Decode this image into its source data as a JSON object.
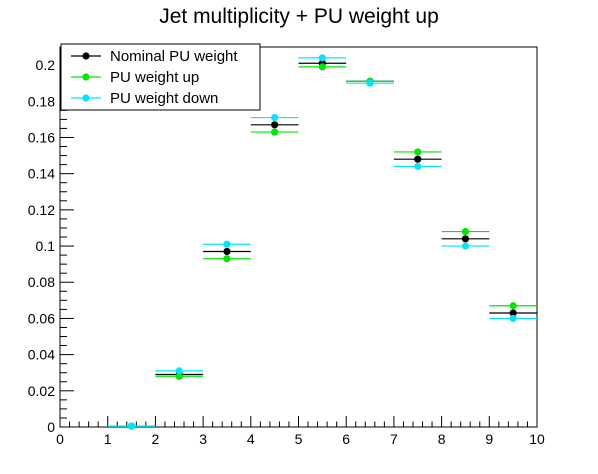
{
  "chart_data": {
    "type": "scatter",
    "title": "Jet multiplicity + PU weight up",
    "xlabel": "",
    "ylabel": "",
    "xlim": [
      0,
      10
    ],
    "ylim": [
      0,
      0.21
    ],
    "bin_width": 1,
    "x_ticks": [
      0,
      1,
      2,
      3,
      4,
      5,
      6,
      7,
      8,
      9,
      10
    ],
    "x_tick_labels": [
      "0",
      "1",
      "2",
      "3",
      "4",
      "5",
      "6",
      "7",
      "8",
      "9",
      "10"
    ],
    "y_ticks": [
      0,
      0.02,
      0.04,
      0.06,
      0.08,
      0.1,
      0.12,
      0.14,
      0.16,
      0.18,
      0.2
    ],
    "y_tick_labels": [
      "0",
      "0.02",
      "0.04",
      "0.06",
      "0.08",
      "0.1",
      "0.12",
      "0.14",
      "0.16",
      "0.18",
      "0.2"
    ],
    "legend_position": "top-left",
    "x": [
      1.5,
      2.5,
      3.5,
      4.5,
      5.5,
      6.5,
      7.5,
      8.5,
      9.5
    ],
    "series": [
      {
        "name": "Nominal PU weight",
        "color": "#000000",
        "values": [
          0.0005,
          0.029,
          0.097,
          0.167,
          0.201,
          0.191,
          0.148,
          0.104,
          0.063
        ]
      },
      {
        "name": "PU weight up",
        "color": "#00e600",
        "values": [
          0.0005,
          0.028,
          0.093,
          0.163,
          0.199,
          0.191,
          0.152,
          0.108,
          0.067
        ]
      },
      {
        "name": "PU weight down",
        "color": "#00e5ff",
        "values": [
          0.0005,
          0.031,
          0.101,
          0.171,
          0.204,
          0.19,
          0.144,
          0.1,
          0.06
        ]
      }
    ]
  }
}
